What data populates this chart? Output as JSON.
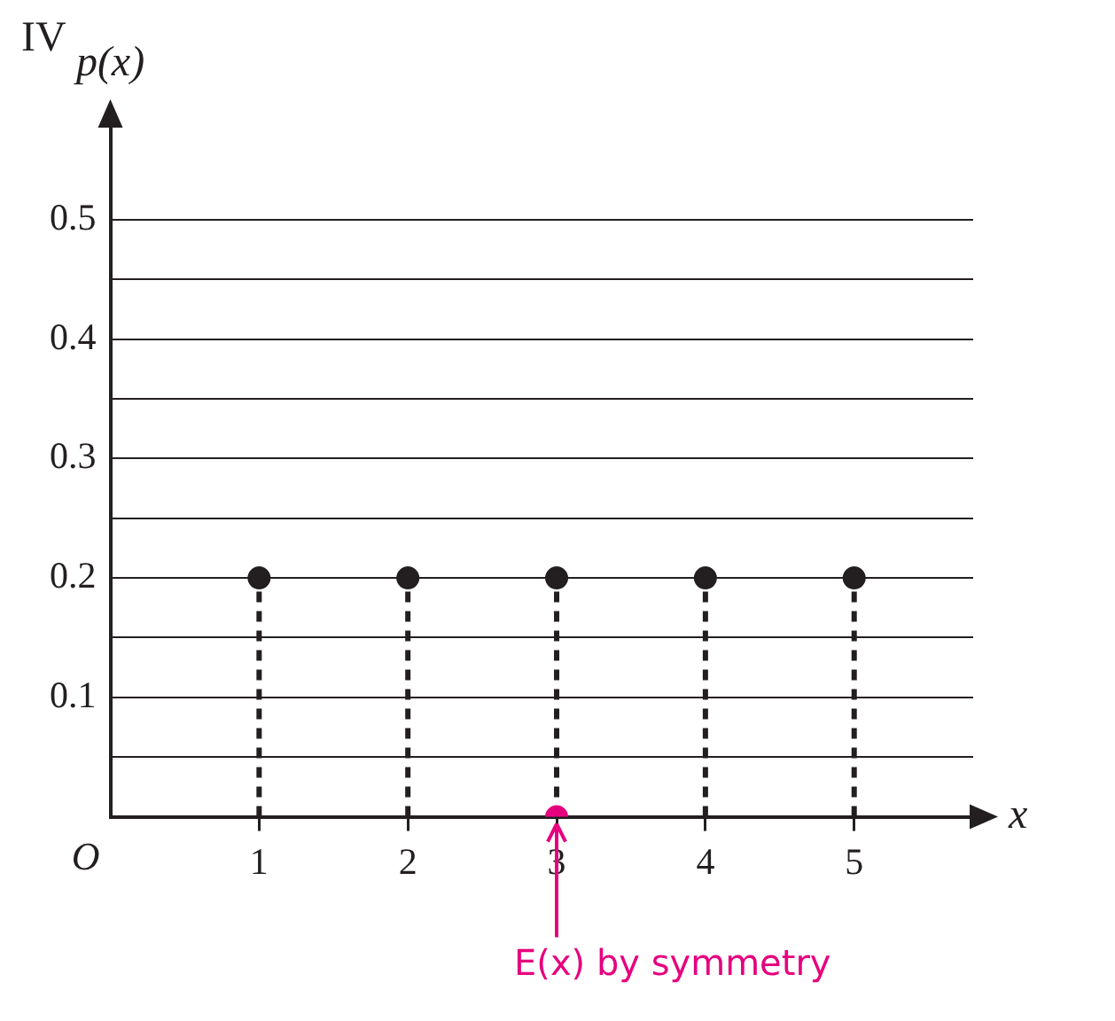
{
  "chart_data": {
    "type": "lollipop",
    "title": "IV",
    "xlabel": "x",
    "ylabel": "p(x)",
    "x": [
      1,
      2,
      3,
      4,
      5
    ],
    "series": [
      {
        "color": "#231f20",
        "values": [
          0.2,
          0.2,
          0.2,
          0.2,
          0.2
        ]
      },
      {
        "type": "scatter",
        "color": "#e6007e",
        "x": [
          3
        ],
        "values": [
          0
        ]
      }
    ],
    "xlim": [
      0,
      5.8
    ],
    "xticks": [
      1,
      2,
      3,
      4,
      5
    ],
    "ylim": [
      0,
      0.58
    ],
    "yticks": [
      {
        "value": 0.05,
        "label": null
      },
      0.1,
      {
        "value": 0.15,
        "label": null
      },
      0.2,
      {
        "value": 0.25,
        "label": null
      },
      0.3,
      {
        "value": 0.35,
        "label": null
      },
      0.4,
      {
        "value": 0.45,
        "label": null
      },
      0.5
    ],
    "grid": "y",
    "marker": "circle",
    "line_style": "dashed",
    "annotations": [
      "O",
      {
        "text": "E(x) by symmetry",
        "x": 3,
        "y": 0
      }
    ]
  }
}
